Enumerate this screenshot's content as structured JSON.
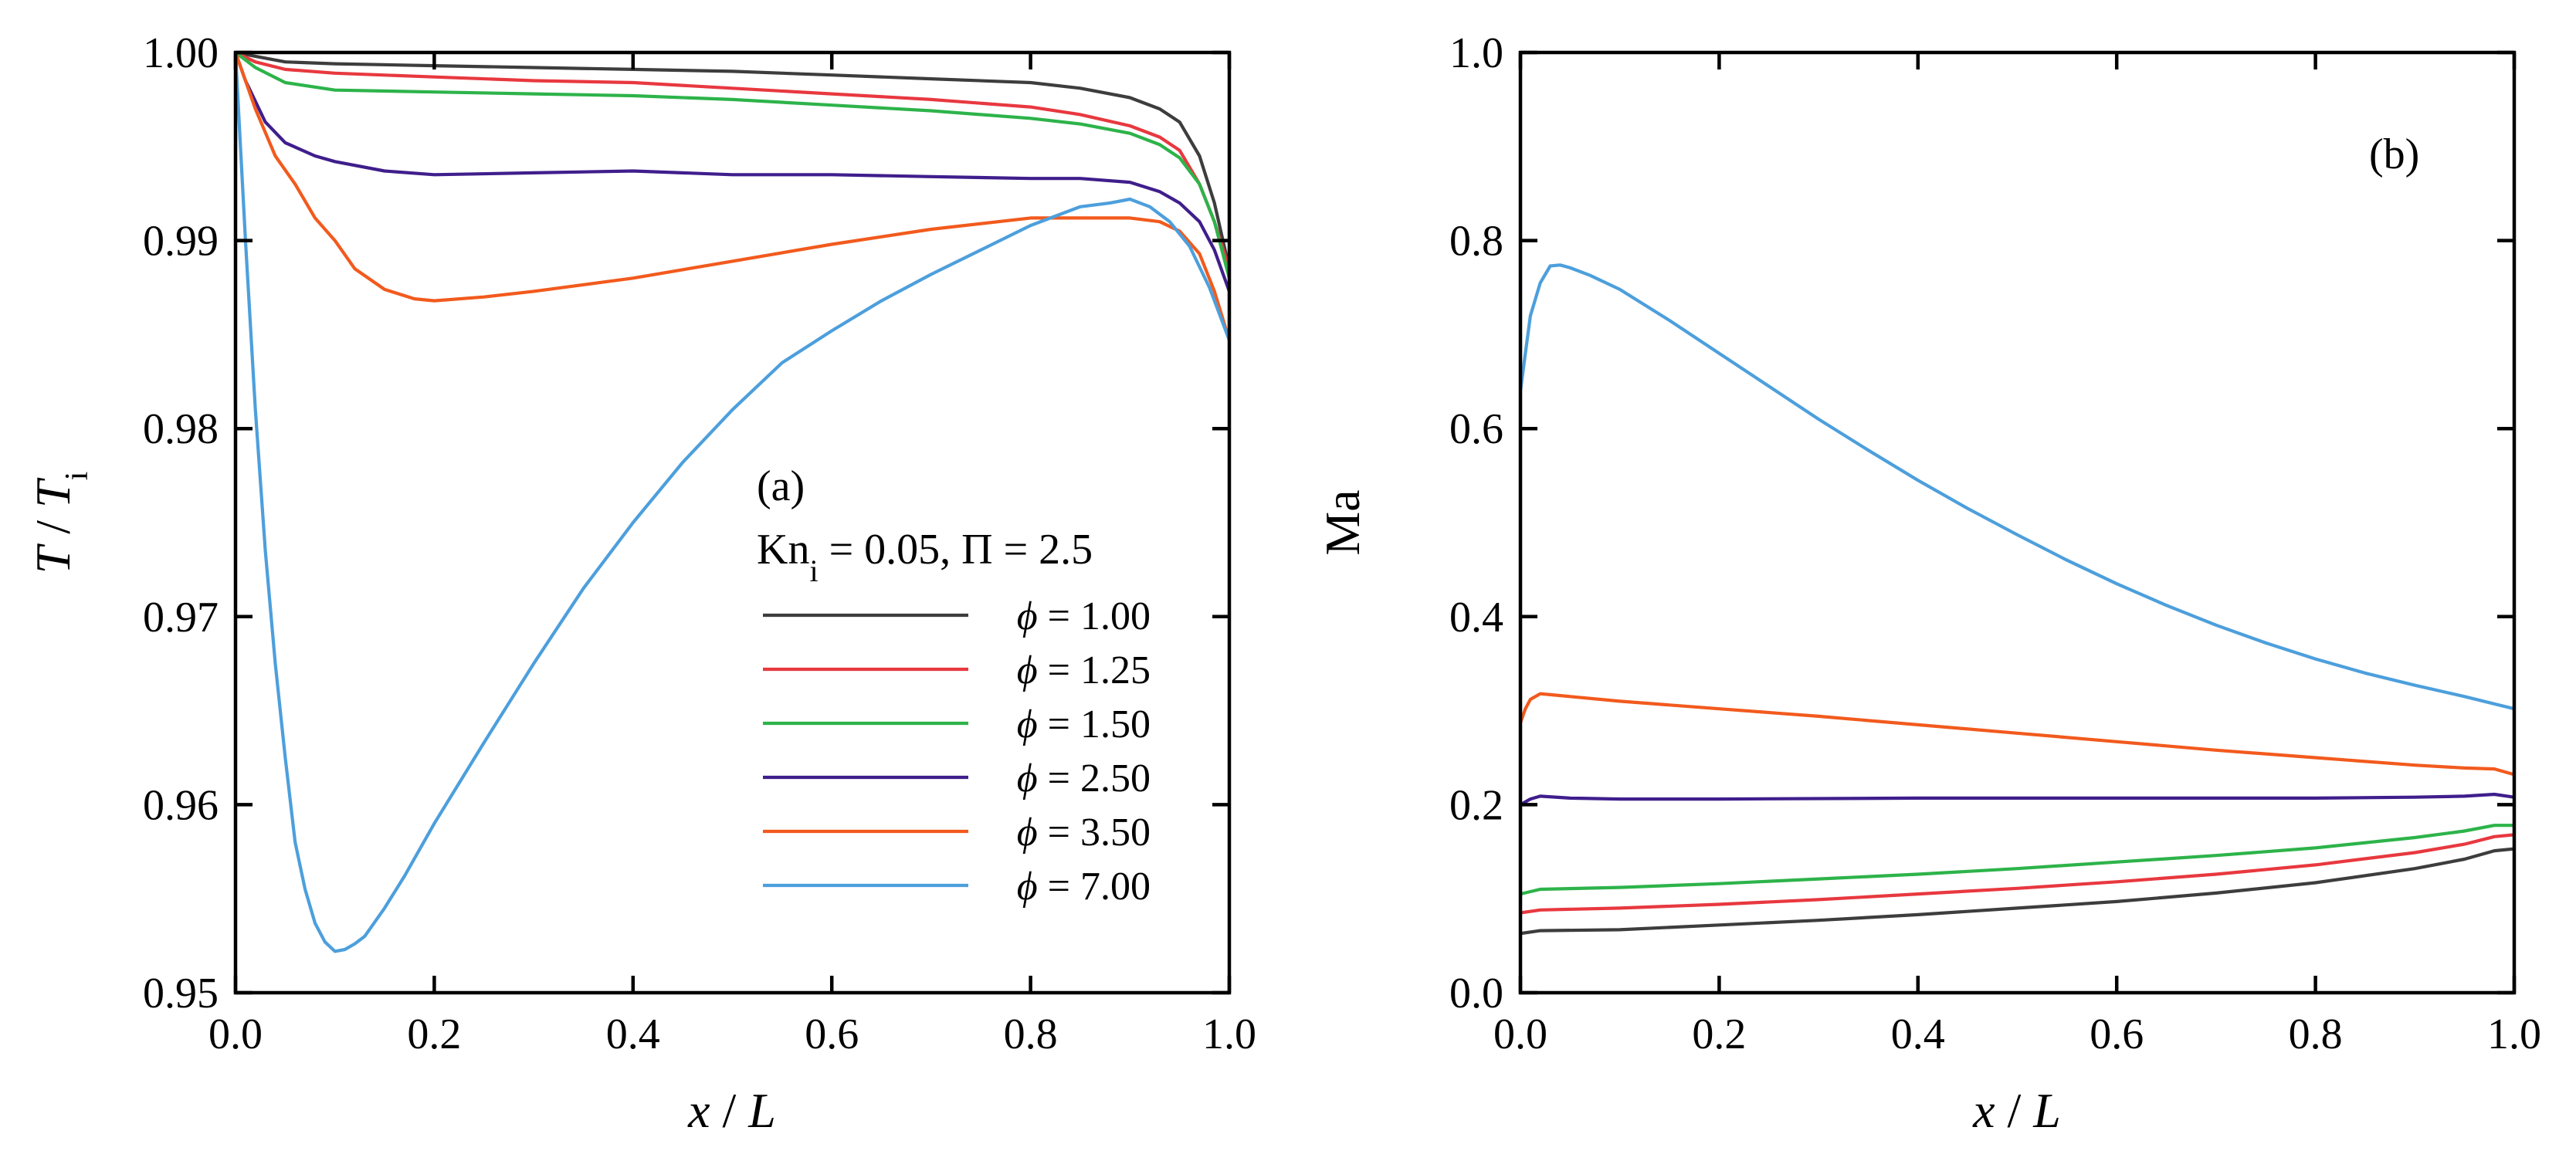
{
  "colors": {
    "phi_1.00": "#3d3d3d",
    "phi_1.25": "#e8383f",
    "phi_1.50": "#2db34a",
    "phi_2.50": "#3f1e8c",
    "phi_3.50": "#f25a1d",
    "phi_7.00": "#4d9fdc"
  },
  "chart_data": [
    {
      "panel": "(a)",
      "type": "line",
      "xlabel": {
        "var": "x",
        "sep": " / ",
        "denom": "L"
      },
      "ylabel": {
        "var": "T",
        "sep": " / ",
        "denom": "T",
        "sub": "i"
      },
      "xlim": [
        0.0,
        1.0
      ],
      "ylim": [
        0.95,
        1.0
      ],
      "xticks": [
        "0.0",
        "0.2",
        "0.4",
        "0.6",
        "0.8",
        "1.0"
      ],
      "yticks": [
        "0.95",
        "0.96",
        "0.97",
        "0.98",
        "0.99",
        "1.00"
      ],
      "legend": {
        "title": {
          "kn": "Kn",
          "kn_sub": "i",
          "rest": " = 0.05, Π = 2.5"
        },
        "symbol": "ϕ",
        "placement": "center-right",
        "entries": [
          " = 1.00",
          " = 1.25",
          " = 1.50",
          " = 2.50",
          " = 3.50",
          " = 7.00"
        ]
      },
      "series": [
        {
          "name": "ϕ = 1.00",
          "color_key": "phi_1.00",
          "x": [
            0.0,
            0.02,
            0.05,
            0.1,
            0.2,
            0.3,
            0.4,
            0.5,
            0.6,
            0.7,
            0.8,
            0.85,
            0.9,
            0.93,
            0.95,
            0.97,
            0.985,
            1.0
          ],
          "y": [
            1.0,
            0.9998,
            0.9995,
            0.9994,
            0.9993,
            0.9992,
            0.9991,
            0.999,
            0.9988,
            0.9986,
            0.9984,
            0.9981,
            0.9976,
            0.997,
            0.9963,
            0.9945,
            0.992,
            0.9885
          ]
        },
        {
          "name": "ϕ = 1.25",
          "color_key": "phi_1.25",
          "x": [
            0.0,
            0.02,
            0.05,
            0.1,
            0.2,
            0.3,
            0.4,
            0.5,
            0.6,
            0.7,
            0.8,
            0.85,
            0.9,
            0.93,
            0.95,
            0.97,
            0.985,
            1.0
          ],
          "y": [
            1.0,
            0.9995,
            0.9991,
            0.9989,
            0.9987,
            0.9985,
            0.9984,
            0.9981,
            0.9978,
            0.9975,
            0.9971,
            0.9967,
            0.9961,
            0.9955,
            0.9948,
            0.993,
            0.991,
            0.9885
          ]
        },
        {
          "name": "ϕ = 1.50",
          "color_key": "phi_1.50",
          "x": [
            0.0,
            0.02,
            0.05,
            0.1,
            0.2,
            0.3,
            0.4,
            0.5,
            0.6,
            0.7,
            0.8,
            0.85,
            0.9,
            0.93,
            0.95,
            0.97,
            0.985,
            1.0
          ],
          "y": [
            1.0,
            0.9992,
            0.9984,
            0.998,
            0.9979,
            0.9978,
            0.9977,
            0.9975,
            0.9972,
            0.9969,
            0.9965,
            0.9962,
            0.9957,
            0.9951,
            0.9944,
            0.993,
            0.991,
            0.988
          ]
        },
        {
          "name": "ϕ = 2.50",
          "color_key": "phi_2.50",
          "x": [
            0.0,
            0.01,
            0.03,
            0.05,
            0.08,
            0.1,
            0.15,
            0.2,
            0.3,
            0.4,
            0.5,
            0.6,
            0.7,
            0.8,
            0.85,
            0.9,
            0.93,
            0.95,
            0.97,
            0.985,
            1.0
          ],
          "y": [
            1.0,
            0.9985,
            0.9963,
            0.9952,
            0.9945,
            0.9942,
            0.9937,
            0.9935,
            0.9936,
            0.9937,
            0.9935,
            0.9935,
            0.9934,
            0.9933,
            0.9933,
            0.9931,
            0.9926,
            0.992,
            0.991,
            0.9895,
            0.9873
          ]
        },
        {
          "name": "ϕ = 3.50",
          "color_key": "phi_3.50",
          "x": [
            0.0,
            0.01,
            0.02,
            0.04,
            0.06,
            0.08,
            0.1,
            0.12,
            0.15,
            0.18,
            0.2,
            0.25,
            0.3,
            0.4,
            0.5,
            0.6,
            0.7,
            0.8,
            0.85,
            0.9,
            0.93,
            0.95,
            0.97,
            0.985,
            1.0
          ],
          "y": [
            1.0,
            0.9985,
            0.997,
            0.9945,
            0.993,
            0.9912,
            0.99,
            0.9885,
            0.9874,
            0.9869,
            0.9868,
            0.987,
            0.9873,
            0.988,
            0.9889,
            0.9898,
            0.9906,
            0.9912,
            0.9912,
            0.9912,
            0.991,
            0.9905,
            0.9893,
            0.9873,
            0.9847
          ]
        },
        {
          "name": "ϕ = 7.00",
          "color_key": "phi_7.00",
          "x": [
            0.0,
            0.005,
            0.01,
            0.02,
            0.03,
            0.04,
            0.05,
            0.06,
            0.07,
            0.08,
            0.09,
            0.1,
            0.11,
            0.12,
            0.13,
            0.15,
            0.17,
            0.2,
            0.25,
            0.3,
            0.35,
            0.4,
            0.45,
            0.5,
            0.55,
            0.6,
            0.65,
            0.7,
            0.75,
            0.8,
            0.85,
            0.88,
            0.9,
            0.92,
            0.94,
            0.96,
            0.98,
            1.0
          ],
          "y": [
            1.0,
            0.995,
            0.99,
            0.981,
            0.9735,
            0.9675,
            0.9625,
            0.958,
            0.9555,
            0.9537,
            0.9527,
            0.9522,
            0.9523,
            0.9526,
            0.953,
            0.9545,
            0.9562,
            0.959,
            0.9633,
            0.9675,
            0.9715,
            0.975,
            0.9782,
            0.981,
            0.9835,
            0.9852,
            0.9868,
            0.9882,
            0.9895,
            0.9908,
            0.9918,
            0.992,
            0.9922,
            0.9918,
            0.991,
            0.9897,
            0.9875,
            0.9847
          ]
        }
      ]
    },
    {
      "panel": "(b)",
      "type": "line",
      "xlabel": {
        "var": "x",
        "sep": " / ",
        "denom": "L"
      },
      "ylabel": {
        "text": "Ma"
      },
      "xlim": [
        0.0,
        1.0
      ],
      "ylim": [
        0.0,
        1.0
      ],
      "xticks": [
        "0.0",
        "0.2",
        "0.4",
        "0.6",
        "0.8",
        "1.0"
      ],
      "yticks": [
        "0.0",
        "0.2",
        "0.4",
        "0.6",
        "0.8",
        "1.0"
      ],
      "series": [
        {
          "name": "ϕ = 1.00",
          "color_key": "phi_1.00",
          "x": [
            0.0,
            0.02,
            0.1,
            0.2,
            0.3,
            0.4,
            0.5,
            0.6,
            0.7,
            0.8,
            0.9,
            0.95,
            0.98,
            1.0
          ],
          "y": [
            0.063,
            0.066,
            0.067,
            0.072,
            0.077,
            0.083,
            0.09,
            0.097,
            0.106,
            0.117,
            0.132,
            0.142,
            0.151,
            0.153
          ]
        },
        {
          "name": "ϕ = 1.25",
          "color_key": "phi_1.25",
          "x": [
            0.0,
            0.02,
            0.1,
            0.2,
            0.3,
            0.4,
            0.5,
            0.6,
            0.7,
            0.8,
            0.9,
            0.95,
            0.98,
            1.0
          ],
          "y": [
            0.085,
            0.088,
            0.09,
            0.094,
            0.099,
            0.105,
            0.111,
            0.118,
            0.126,
            0.136,
            0.149,
            0.158,
            0.166,
            0.168
          ]
        },
        {
          "name": "ϕ = 1.50",
          "color_key": "phi_1.50",
          "x": [
            0.0,
            0.02,
            0.1,
            0.2,
            0.3,
            0.4,
            0.5,
            0.6,
            0.7,
            0.8,
            0.9,
            0.95,
            0.98,
            1.0
          ],
          "y": [
            0.105,
            0.11,
            0.112,
            0.116,
            0.121,
            0.126,
            0.132,
            0.139,
            0.146,
            0.154,
            0.165,
            0.172,
            0.178,
            0.178
          ]
        },
        {
          "name": "ϕ = 2.50",
          "color_key": "phi_2.50",
          "x": [
            0.0,
            0.01,
            0.02,
            0.05,
            0.1,
            0.2,
            0.4,
            0.6,
            0.8,
            0.9,
            0.95,
            0.98,
            1.0
          ],
          "y": [
            0.2,
            0.206,
            0.209,
            0.207,
            0.206,
            0.206,
            0.207,
            0.207,
            0.207,
            0.208,
            0.209,
            0.211,
            0.208
          ]
        },
        {
          "name": "ϕ = 3.50",
          "color_key": "phi_3.50",
          "x": [
            0.0,
            0.005,
            0.01,
            0.02,
            0.03,
            0.05,
            0.1,
            0.2,
            0.3,
            0.4,
            0.5,
            0.6,
            0.7,
            0.8,
            0.9,
            0.95,
            0.98,
            1.0
          ],
          "y": [
            0.287,
            0.302,
            0.312,
            0.318,
            0.317,
            0.315,
            0.31,
            0.302,
            0.294,
            0.285,
            0.276,
            0.267,
            0.258,
            0.25,
            0.242,
            0.239,
            0.238,
            0.232
          ]
        },
        {
          "name": "ϕ = 7.00",
          "color_key": "phi_7.00",
          "x": [
            0.0,
            0.005,
            0.01,
            0.02,
            0.03,
            0.04,
            0.05,
            0.07,
            0.1,
            0.15,
            0.2,
            0.25,
            0.3,
            0.35,
            0.4,
            0.45,
            0.5,
            0.55,
            0.6,
            0.65,
            0.7,
            0.75,
            0.8,
            0.85,
            0.9,
            0.95,
            1.0
          ],
          "y": [
            0.64,
            0.68,
            0.72,
            0.755,
            0.773,
            0.774,
            0.771,
            0.763,
            0.748,
            0.715,
            0.68,
            0.645,
            0.61,
            0.577,
            0.545,
            0.515,
            0.487,
            0.46,
            0.435,
            0.412,
            0.391,
            0.372,
            0.355,
            0.34,
            0.327,
            0.315,
            0.302
          ]
        }
      ]
    }
  ]
}
